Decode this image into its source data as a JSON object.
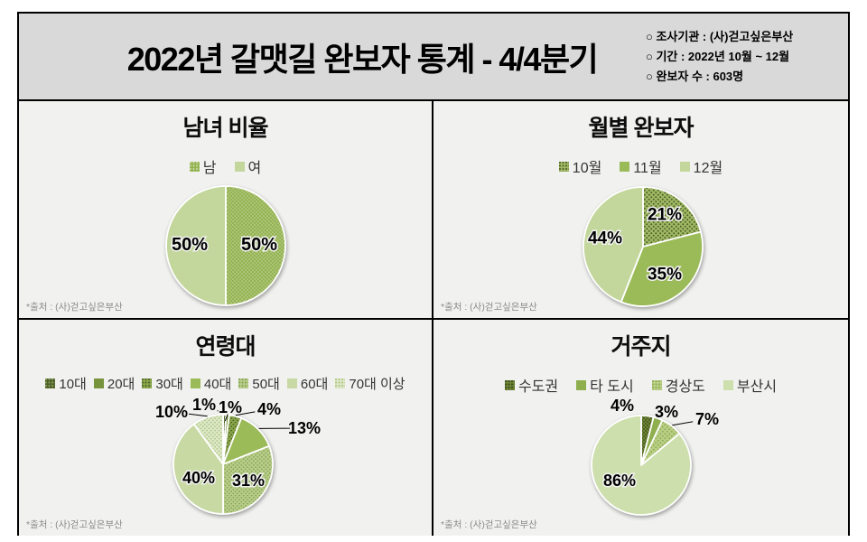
{
  "header": {
    "title": "2022년 갈맷길 완보자 통계 - 4/4분기",
    "info": [
      "○ 조사기관 : (사)걷고싶은부산",
      "○ 기간 : 2022년 10월 ~ 12월",
      "○ 완보자 수 : 603명"
    ]
  },
  "source_note": "*출처 : (사)걷고싶은부산",
  "colors": {
    "header_bg": "#d9d9d9",
    "panel_bg": "#f1f2f0",
    "border": "#000000",
    "accent_green": "#9bbb59",
    "light_green": "#c3d69b"
  },
  "chart_data": [
    {
      "type": "pie",
      "title": "남녀 비율",
      "legend_position": "top",
      "center": [
        229,
        160
      ],
      "radius": 66,
      "label_size": 20,
      "slices": [
        {
          "label": "남",
          "value": 50,
          "color": "#94b351",
          "pattern": {
            "dot": "#c8d8a4",
            "size": 4,
            "r": 0.8
          },
          "label_pos": [
            37,
            -1
          ],
          "callout": false
        },
        {
          "label": "여",
          "value": 50,
          "color": "#c3d69b",
          "label_pos": [
            -40,
            -1
          ],
          "callout": false
        }
      ]
    },
    {
      "type": "pie",
      "title": "월별 완보자",
      "legend_position": "top",
      "center": [
        232,
        161
      ],
      "radius": 66,
      "label_size": 19,
      "slices": [
        {
          "label": "10월",
          "value": 21,
          "color": "#a0b964",
          "pattern": {
            "dot": "#4c5e26",
            "size": 5,
            "r": 1
          },
          "label_pos": [
            24,
            -35
          ],
          "callout": false
        },
        {
          "label": "11월",
          "value": 35,
          "color": "#9bbb59",
          "label_pos": [
            24,
            31
          ],
          "callout": false
        },
        {
          "label": "12월",
          "value": 44,
          "color": "#c3d69b",
          "label_pos": [
            -42,
            -9
          ],
          "callout": false
        }
      ]
    },
    {
      "type": "pie",
      "title": "연령대",
      "legend_position": "top",
      "center": [
        226,
        160
      ],
      "radius": 55,
      "label_size": 18,
      "slices": [
        {
          "label": "10대",
          "value": 1,
          "color": "#4f6228",
          "pattern": {
            "dot": "#8ca05e",
            "size": 4,
            "r": 0.8
          },
          "label_pos": [
            -21,
            -66
          ],
          "callout": true
        },
        {
          "label": "20대",
          "value": 1,
          "color": "#77933c",
          "label_pos": [
            8,
            -63
          ],
          "callout": true
        },
        {
          "label": "30대",
          "value": 4,
          "color": "#8aa74a",
          "pattern": {
            "dot": "#4f6228",
            "size": 4.5,
            "r": 0.9
          },
          "label_pos": [
            51,
            -61
          ],
          "callout": true
        },
        {
          "label": "40대",
          "value": 13,
          "color": "#9bbb59",
          "label_pos": [
            90,
            -40
          ],
          "callout": true
        },
        {
          "label": "50대",
          "value": 31,
          "color": "#b7cd89",
          "pattern": {
            "dot": "#88a355",
            "size": 4.5,
            "r": 0.9
          },
          "label_pos": [
            28,
            18
          ],
          "callout": false
        },
        {
          "label": "60대",
          "value": 40,
          "color": "#c8d9a4",
          "label_pos": [
            -27,
            15
          ],
          "callout": false
        },
        {
          "label": "70대 이상",
          "value": 10,
          "color": "#dde8c8",
          "pattern": {
            "dot": "#aec47f",
            "size": 4.5,
            "r": 0.9
          },
          "label_pos": [
            -57,
            -58
          ],
          "callout": true
        }
      ]
    },
    {
      "type": "pie",
      "title": "거주지",
      "legend_position": "top",
      "center": [
        230,
        161
      ],
      "radius": 55,
      "label_size": 18,
      "slices": [
        {
          "label": "수도권",
          "value": 4,
          "color": "#6d8335",
          "pattern": {
            "dot": "#394a18",
            "size": 4,
            "r": 0.9
          },
          "label_pos": [
            -21,
            -66
          ],
          "callout": false
        },
        {
          "label": "타 도시",
          "value": 3,
          "color": "#8fae4d",
          "label_pos": [
            28,
            -59
          ],
          "callout": false
        },
        {
          "label": "경상도",
          "value": 7,
          "color": "#bad086",
          "pattern": {
            "dot": "#8fab55",
            "size": 5,
            "r": 1
          },
          "label_pos": [
            73,
            -51
          ],
          "callout": true
        },
        {
          "label": "부산시",
          "value": 86,
          "color": "#cddfad",
          "label_pos": [
            -24,
            17
          ],
          "callout": false
        }
      ]
    }
  ]
}
